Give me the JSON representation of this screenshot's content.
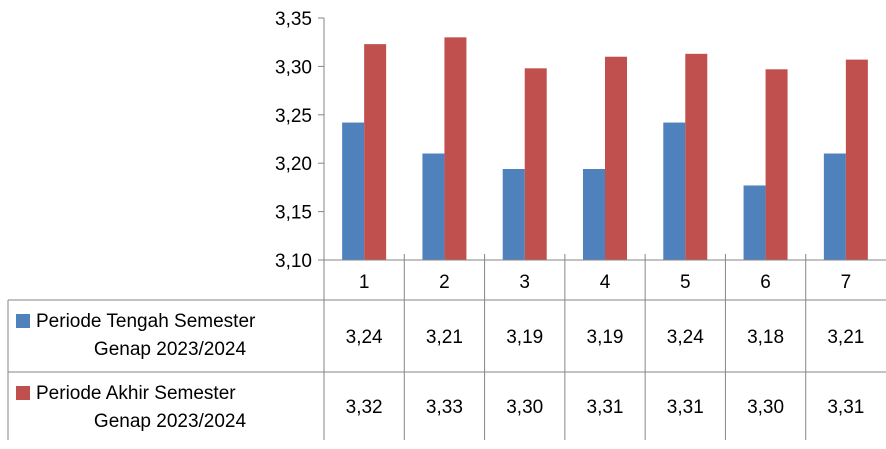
{
  "chart_data": {
    "type": "bar",
    "categories": [
      "1",
      "2",
      "3",
      "4",
      "5",
      "6",
      "7"
    ],
    "series": [
      {
        "name_lines": [
          "Periode Tengah Semester",
          "Genap 2023/2024"
        ],
        "color": "#4f81bd",
        "values": [
          3.242,
          3.21,
          3.194,
          3.194,
          3.242,
          3.177,
          3.21
        ],
        "labels": [
          "3,24",
          "3,21",
          "3,19",
          "3,19",
          "3,24",
          "3,18",
          "3,21"
        ]
      },
      {
        "name_lines": [
          "Periode Akhir Semester",
          "Genap 2023/2024"
        ],
        "color": "#c0504d",
        "values": [
          3.323,
          3.33,
          3.298,
          3.31,
          3.313,
          3.297,
          3.307
        ],
        "labels": [
          "3,32",
          "3,33",
          "3,30",
          "3,31",
          "3,31",
          "3,30",
          "3,31"
        ]
      }
    ],
    "ylim": [
      3.1,
      3.35
    ],
    "yticks": [
      3.1,
      3.15,
      3.2,
      3.25,
      3.3,
      3.35
    ],
    "ytick_labels": [
      "3,10",
      "3,15",
      "3,20",
      "3,25",
      "3,30",
      "3,35"
    ],
    "grid": false,
    "legend": "data-table"
  }
}
